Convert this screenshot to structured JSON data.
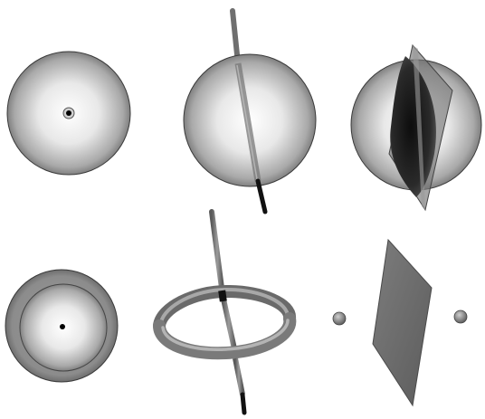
{
  "diagram": {
    "rows": 2,
    "columns": 3,
    "panels": [
      {
        "id": "sphere-with-point",
        "row": 1,
        "col": 1,
        "elements": [
          "sphere",
          "point"
        ]
      },
      {
        "id": "sphere-with-line",
        "row": 1,
        "col": 2,
        "elements": [
          "sphere",
          "line"
        ]
      },
      {
        "id": "sphere-with-plane",
        "row": 1,
        "col": 3,
        "elements": [
          "sphere",
          "plane"
        ]
      },
      {
        "id": "nested-spheres-with-point",
        "row": 2,
        "col": 1,
        "elements": [
          "outer-sphere",
          "inner-sphere",
          "point"
        ]
      },
      {
        "id": "torus-with-line",
        "row": 2,
        "col": 2,
        "elements": [
          "torus",
          "line"
        ]
      },
      {
        "id": "plane-with-two-points",
        "row": 2,
        "col": 3,
        "elements": [
          "point",
          "plane",
          "point"
        ]
      }
    ],
    "colors": {
      "background": "#ffffff",
      "sphere_highlight": "#ffffff",
      "sphere_shadow": "#4a4a4a",
      "outline": "#333333",
      "rod": "#7a7a7a",
      "rod_dark": "#111111",
      "plane": "#6e6e6e",
      "torus": "#8a8a8a",
      "point": "#000000"
    }
  }
}
